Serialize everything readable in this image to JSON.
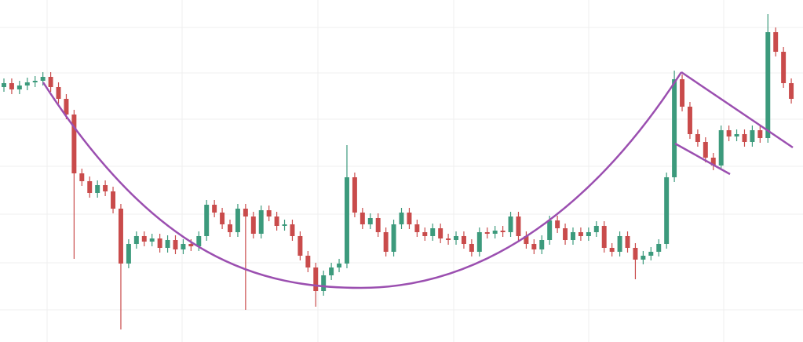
{
  "chart_data": {
    "type": "candlestick",
    "open": [
      325,
      330,
      322,
      327,
      331,
      333,
      338,
      325,
      310,
      290,
      215,
      205,
      190,
      200,
      192,
      170,
      100,
      125,
      135,
      128,
      132,
      120,
      130,
      118,
      125,
      122,
      135,
      175,
      165,
      150,
      140,
      170,
      160,
      138,
      168,
      160,
      148,
      150,
      135,
      110,
      95,
      65,
      85,
      95,
      100,
      210,
      165,
      150,
      158,
      140,
      115,
      150,
      165,
      150,
      140,
      135,
      145,
      132,
      130,
      135,
      125,
      115,
      140,
      138,
      142,
      140,
      160,
      135,
      125,
      118,
      130,
      155,
      145,
      130,
      140,
      135,
      140,
      148,
      120,
      115,
      135,
      120,
      105,
      110,
      115,
      125,
      210,
      335,
      300,
      265,
      255,
      235,
      225,
      270,
      262,
      265,
      255,
      270,
      260,
      395,
      370,
      330
    ],
    "high": [
      336,
      336,
      333,
      337,
      339,
      344,
      344,
      331,
      316,
      296,
      221,
      211,
      206,
      206,
      198,
      176,
      131,
      141,
      141,
      138,
      138,
      136,
      136,
      131,
      131,
      141,
      181,
      181,
      171,
      156,
      176,
      176,
      166,
      174,
      174,
      166,
      156,
      156,
      141,
      116,
      101,
      91,
      101,
      106,
      251,
      216,
      171,
      164,
      164,
      146,
      156,
      171,
      171,
      156,
      146,
      151,
      151,
      138,
      141,
      141,
      131,
      146,
      146,
      148,
      148,
      166,
      166,
      141,
      131,
      136,
      161,
      161,
      151,
      146,
      146,
      146,
      154,
      154,
      126,
      141,
      141,
      126,
      116,
      121,
      131,
      216,
      346,
      341,
      306,
      271,
      261,
      241,
      276,
      276,
      271,
      271,
      276,
      276,
      418,
      401,
      376,
      336
    ],
    "low": [
      319,
      316,
      316,
      321,
      325,
      327,
      319,
      304,
      284,
      106,
      199,
      184,
      184,
      186,
      164,
      16,
      94,
      119,
      122,
      122,
      114,
      114,
      112,
      112,
      116,
      116,
      129,
      159,
      144,
      134,
      134,
      41,
      132,
      132,
      154,
      142,
      142,
      129,
      104,
      89,
      45,
      59,
      79,
      89,
      94,
      159,
      144,
      144,
      134,
      109,
      109,
      144,
      144,
      134,
      129,
      129,
      126,
      124,
      124,
      119,
      109,
      109,
      132,
      132,
      134,
      134,
      129,
      119,
      112,
      112,
      124,
      139,
      124,
      124,
      129,
      129,
      134,
      114,
      109,
      109,
      114,
      80,
      99,
      104,
      109,
      119,
      204,
      294,
      259,
      249,
      229,
      219,
      219,
      256,
      256,
      249,
      249,
      254,
      254,
      364,
      324,
      304
    ],
    "close": [
      330,
      322,
      327,
      331,
      333,
      338,
      325,
      310,
      290,
      215,
      205,
      190,
      200,
      192,
      170,
      100,
      125,
      135,
      128,
      132,
      120,
      130,
      118,
      125,
      122,
      135,
      175,
      165,
      150,
      140,
      170,
      160,
      138,
      168,
      160,
      148,
      150,
      135,
      110,
      95,
      65,
      85,
      95,
      100,
      210,
      165,
      150,
      158,
      140,
      115,
      150,
      165,
      150,
      140,
      135,
      145,
      132,
      130,
      135,
      125,
      115,
      140,
      138,
      142,
      140,
      160,
      135,
      125,
      118,
      130,
      155,
      145,
      130,
      140,
      135,
      140,
      148,
      120,
      115,
      135,
      120,
      105,
      110,
      115,
      125,
      210,
      335,
      300,
      265,
      255,
      235,
      225,
      270,
      262,
      265,
      255,
      270,
      260,
      395,
      370,
      330,
      310
    ],
    "up_color": "#3c9a7c",
    "down_color": "#c94b4b",
    "ylim": [
      0,
      436
    ],
    "yticks": [
      41,
      101,
      163,
      224,
      284,
      343,
      401
    ],
    "grid": true
  }
}
